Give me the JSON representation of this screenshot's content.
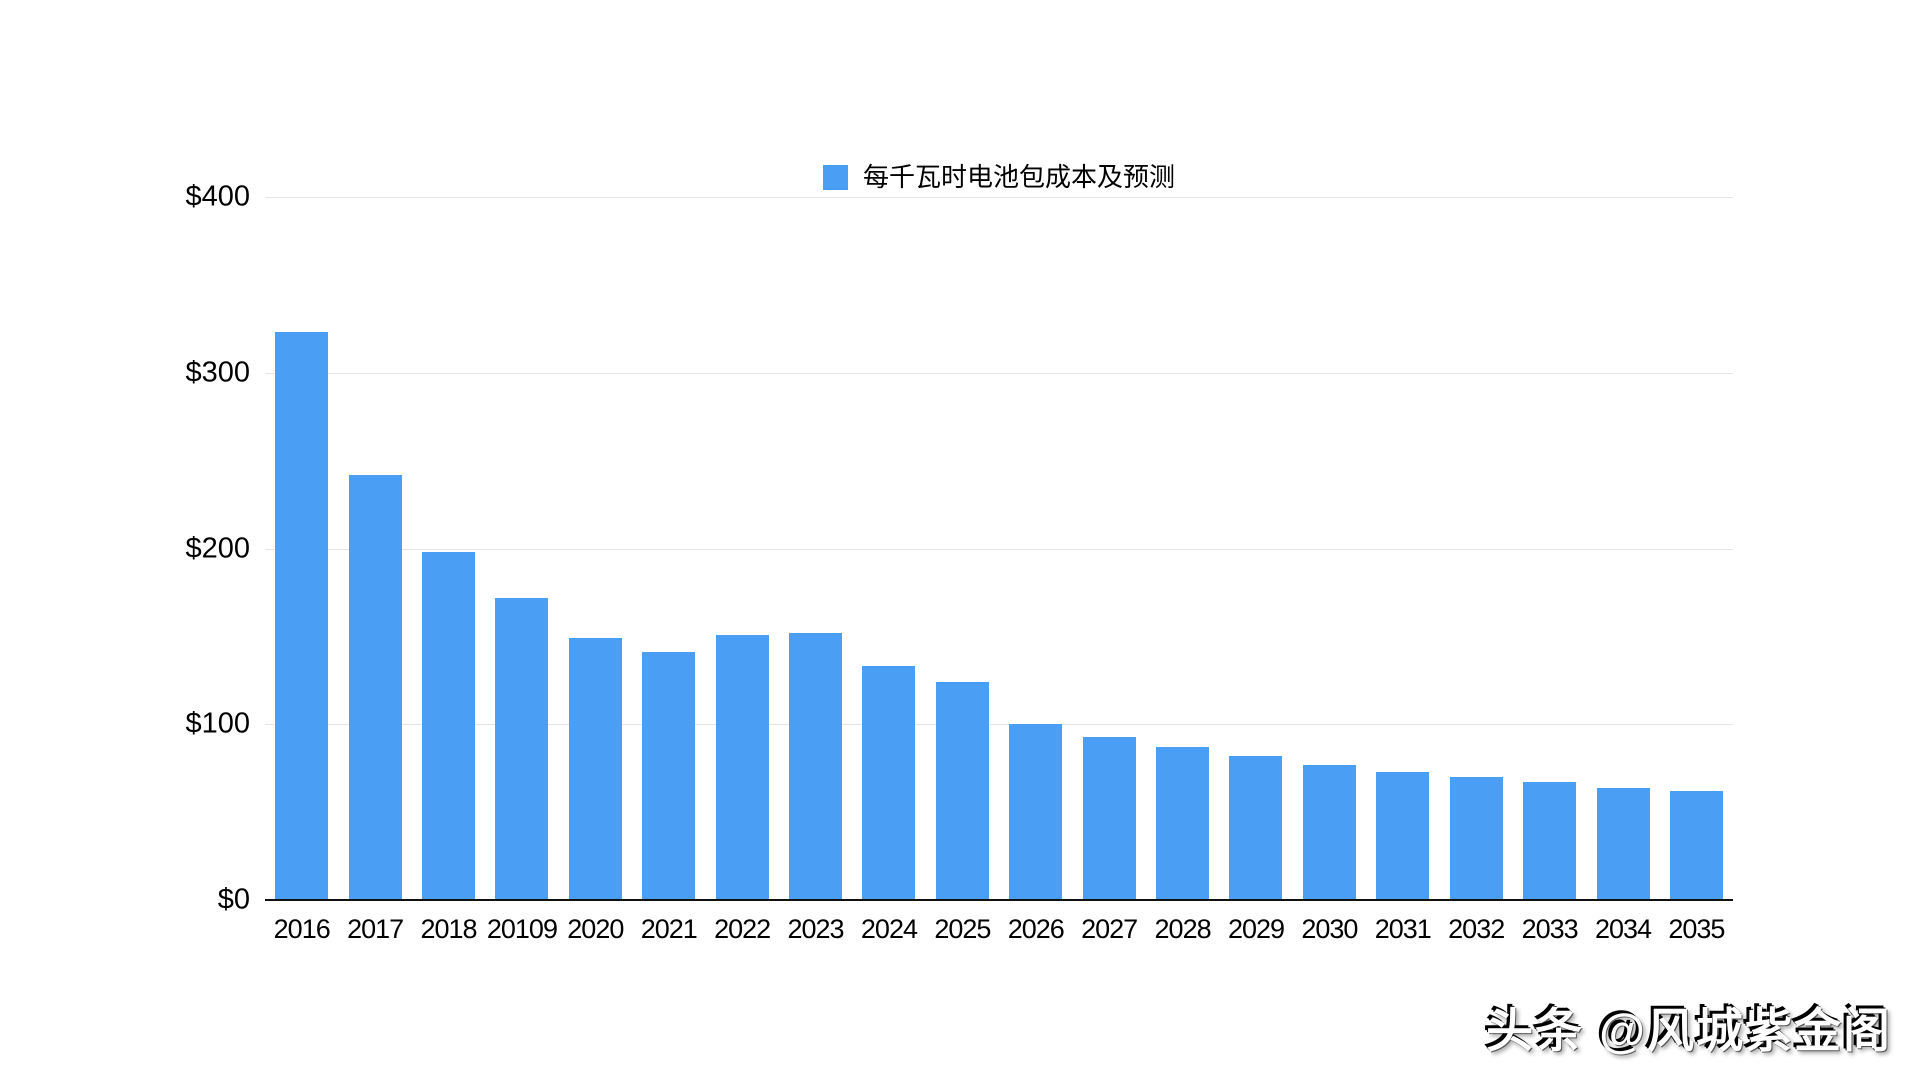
{
  "chart_data": {
    "type": "bar",
    "title": "每千瓦时电池包成本及预测",
    "categories": [
      "2016",
      "2017",
      "2018",
      "20109",
      "2020",
      "2021",
      "2022",
      "2023",
      "2024",
      "2025",
      "2026",
      "2027",
      "2028",
      "2029",
      "2030",
      "2031",
      "2032",
      "2033",
      "2034",
      "2035"
    ],
    "values": [
      323,
      242,
      198,
      172,
      149,
      141,
      151,
      152,
      133,
      124,
      100,
      93,
      87,
      82,
      77,
      73,
      70,
      67,
      64,
      62
    ],
    "xlabel": "",
    "ylabel": "",
    "ylim": [
      0,
      400
    ],
    "y_ticks": [
      {
        "label": "$400",
        "value": 400
      },
      {
        "label": "$300",
        "value": 300
      },
      {
        "label": "$200",
        "value": 200
      },
      {
        "label": "$100",
        "value": 100
      },
      {
        "label": "$0",
        "value": 0
      }
    ],
    "grid": true,
    "legend_position": "top-center",
    "bar_color": "#4a9ff5",
    "gridline_color": "#e4e4e4",
    "axis_line_color": "#111111",
    "text_color": "#000000"
  },
  "legend": {
    "label": "每千瓦时电池包成本及预测",
    "swatch_color": "#4a9ff5"
  },
  "watermark": {
    "text": "头条 @风城紫金阁"
  }
}
